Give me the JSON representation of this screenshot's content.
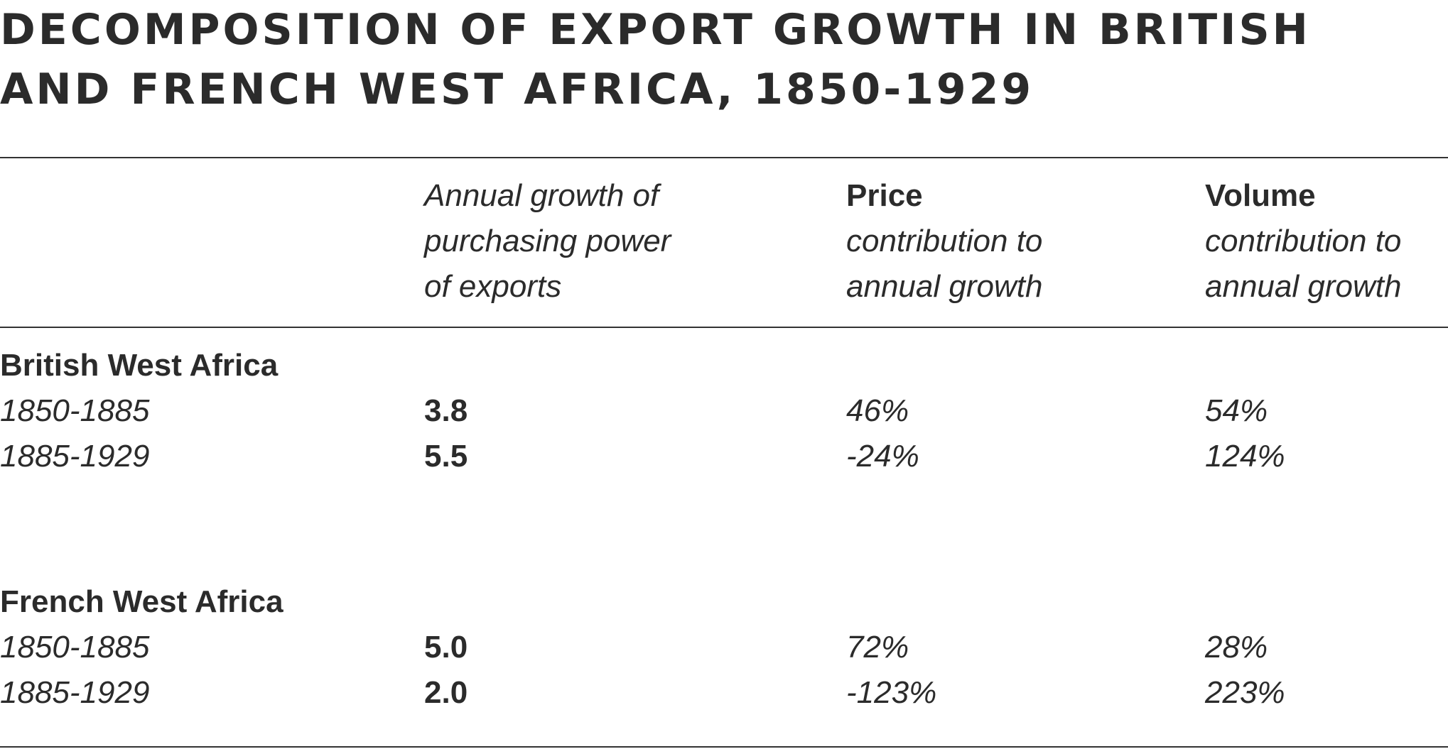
{
  "title": {
    "line1": "DECOMPOSITION OF EXPORT GROWTH IN BRITISH",
    "line2": "AND FRENCH WEST AFRICA, 1850-1929"
  },
  "columns": {
    "growth": {
      "label_lines": [
        "Annual growth of",
        "purchasing power",
        "of exports"
      ]
    },
    "price": {
      "heading": "Price",
      "label_lines": [
        "contribution to",
        "annual growth"
      ]
    },
    "volume": {
      "heading": "Volume",
      "label_lines": [
        "contribution to",
        "annual growth"
      ]
    }
  },
  "regions": [
    {
      "name": "British West Africa",
      "rows": [
        {
          "period": "1850-1885",
          "growth": "3.8",
          "price": "46%",
          "volume": "54%"
        },
        {
          "period": "1885-1929",
          "growth": "5.5",
          "price": "-24%",
          "volume": "124%"
        }
      ]
    },
    {
      "name": "French West Africa",
      "rows": [
        {
          "period": "1850-1885",
          "growth": "5.0",
          "price": "72%",
          "volume": "28%"
        },
        {
          "period": "1885-1929",
          "growth": "2.0",
          "price": "-123%",
          "volume": "223%"
        }
      ]
    }
  ]
}
